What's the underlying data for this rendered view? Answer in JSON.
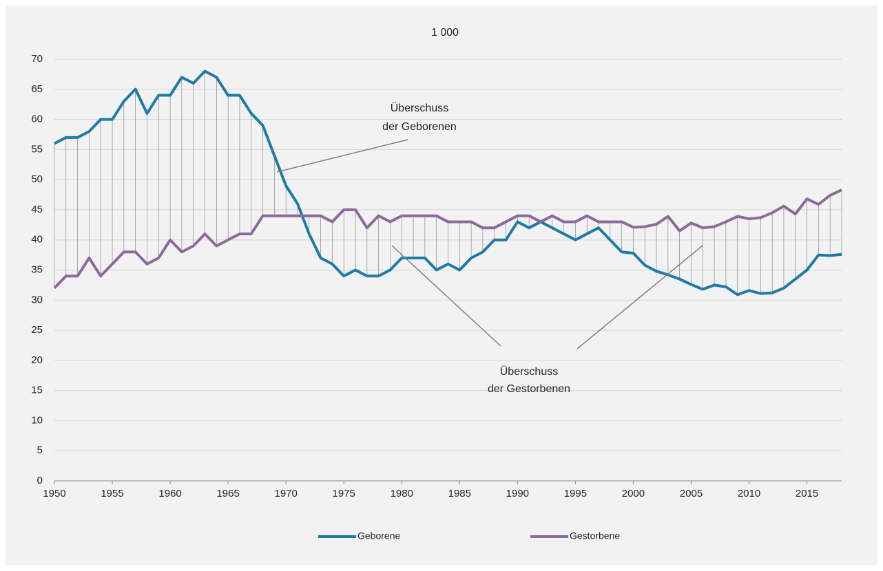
{
  "chart_data": {
    "type": "line",
    "title": "1 000",
    "x": [
      1950,
      1951,
      1952,
      1953,
      1954,
      1955,
      1956,
      1957,
      1958,
      1959,
      1960,
      1961,
      1962,
      1963,
      1964,
      1965,
      1966,
      1967,
      1968,
      1969,
      1970,
      1971,
      1972,
      1973,
      1974,
      1975,
      1976,
      1977,
      1978,
      1979,
      1980,
      1981,
      1982,
      1983,
      1984,
      1985,
      1986,
      1987,
      1988,
      1989,
      1990,
      1991,
      1992,
      1993,
      1994,
      1995,
      1996,
      1997,
      1998,
      1999,
      2000,
      2001,
      2002,
      2003,
      2004,
      2005,
      2006,
      2007,
      2008,
      2009,
      2010,
      2011,
      2012,
      2013,
      2014,
      2015,
      2016,
      2017,
      2018
    ],
    "series": [
      {
        "name": "Geborene",
        "color": "#1f7aa6",
        "values": [
          56,
          57,
          57,
          58,
          60,
          60,
          63,
          65,
          61,
          64,
          64,
          67,
          66,
          68,
          67,
          64,
          64,
          61,
          59,
          54,
          49,
          46,
          41,
          37,
          36,
          34,
          35,
          34,
          34,
          35,
          37,
          37,
          37,
          35,
          36,
          35,
          37,
          38,
          40,
          40,
          43,
          42,
          43,
          42,
          41,
          40,
          41,
          42,
          40,
          38,
          37.8,
          35.8,
          34.8,
          34.2,
          33.5,
          32.6,
          31.8,
          32.5,
          32.2,
          30.9,
          31.6,
          31.1,
          31.2,
          32,
          33.5,
          35,
          37.5,
          37.4,
          37.6
        ]
      },
      {
        "name": "Gestorbene",
        "color": "#8c6a9b",
        "values": [
          32,
          34,
          34,
          37,
          34,
          36,
          38,
          38,
          36,
          37,
          40,
          38,
          39,
          41,
          39,
          40,
          41,
          41,
          44,
          44,
          44,
          44,
          44,
          44,
          43,
          45,
          45,
          42,
          44,
          43,
          44,
          44,
          44,
          44,
          43,
          43,
          43,
          42,
          42,
          43,
          44,
          44,
          43,
          44,
          43,
          43,
          44,
          43,
          43,
          43,
          42.1,
          42.2,
          42.6,
          43.9,
          41.5,
          42.8,
          42,
          42.2,
          43,
          43.9,
          43.5,
          43.7,
          44.5,
          45.6,
          44.3,
          46.8,
          45.9,
          47.4,
          48.3
        ]
      }
    ],
    "xlim": [
      1950,
      2018
    ],
    "xticks": [
      1950,
      1955,
      1960,
      1965,
      1970,
      1975,
      1980,
      1985,
      1990,
      1995,
      2000,
      2005,
      2010,
      2015
    ],
    "ylim": [
      0,
      70
    ],
    "yticks": [
      0,
      5,
      10,
      15,
      20,
      25,
      30,
      35,
      40,
      45,
      50,
      55,
      60,
      65,
      70
    ],
    "grid": true,
    "drop_lines": true,
    "legend": "bottom",
    "annotations": [
      {
        "lines": [
          "Überschuss",
          "der Geborenen"
        ]
      },
      {
        "lines": [
          "Überschuss",
          "der Gestorbenen"
        ]
      }
    ]
  }
}
